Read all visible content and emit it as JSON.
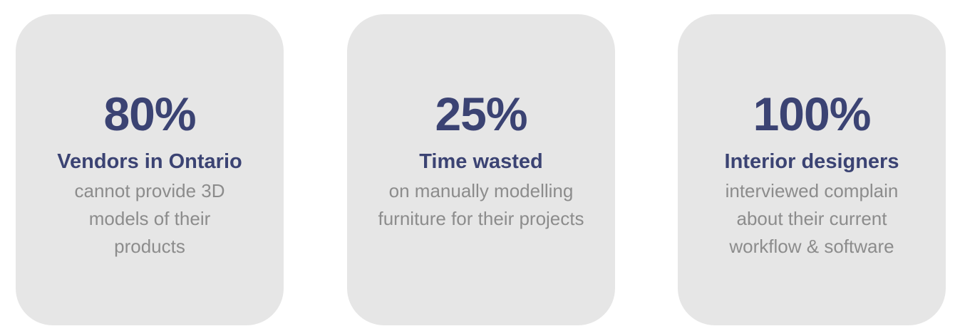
{
  "cards": [
    {
      "stat": "80%",
      "headline": "Vendors in Ontario",
      "description": "cannot provide 3D models of their products"
    },
    {
      "stat": "25%",
      "headline": "Time wasted",
      "description": "on manually modelling furniture for their projects"
    },
    {
      "stat": "100%",
      "headline": "Interior designers",
      "description": "interviewed complain about their current workflow & software"
    }
  ],
  "colors": {
    "card_background": "#e6e6e6",
    "stat_text": "#3b4373",
    "description_text": "#8c8c8c"
  }
}
